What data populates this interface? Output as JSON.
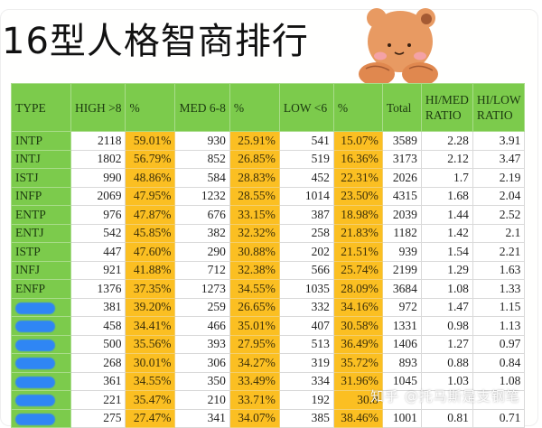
{
  "title": "16型人格智商排行",
  "sticker": "bear-sticker",
  "colors": {
    "header_green": "#7ccb4c",
    "percent_orange": "#fbbf22",
    "redaction_blue": "#2f86f4"
  },
  "table": {
    "headers": [
      "TYPE",
      "HIGH >8",
      "%",
      "MED 6-8",
      "%",
      "LOW <6",
      "%",
      "Total",
      "HI/MED RATIO",
      "HI/LOW RATIO"
    ],
    "rows": [
      {
        "type": "INTP",
        "high": "2118",
        "high_pct": "59.01%",
        "med": "930",
        "med_pct": "25.91%",
        "low": "541",
        "low_pct": "15.07%",
        "total": "3589",
        "hi_med": "2.28",
        "hi_low": "3.91"
      },
      {
        "type": "INTJ",
        "high": "1802",
        "high_pct": "56.79%",
        "med": "852",
        "med_pct": "26.85%",
        "low": "519",
        "low_pct": "16.36%",
        "total": "3173",
        "hi_med": "2.12",
        "hi_low": "3.47"
      },
      {
        "type": "ISTJ",
        "high": "990",
        "high_pct": "48.86%",
        "med": "584",
        "med_pct": "28.83%",
        "low": "452",
        "low_pct": "22.31%",
        "total": "2026",
        "hi_med": "1.7",
        "hi_low": "2.19"
      },
      {
        "type": "INFP",
        "high": "2069",
        "high_pct": "47.95%",
        "med": "1232",
        "med_pct": "28.55%",
        "low": "1014",
        "low_pct": "23.50%",
        "total": "4315",
        "hi_med": "1.68",
        "hi_low": "2.04"
      },
      {
        "type": "ENTP",
        "high": "976",
        "high_pct": "47.87%",
        "med": "676",
        "med_pct": "33.15%",
        "low": "387",
        "low_pct": "18.98%",
        "total": "2039",
        "hi_med": "1.44",
        "hi_low": "2.52"
      },
      {
        "type": "ENTJ",
        "high": "542",
        "high_pct": "45.85%",
        "med": "382",
        "med_pct": "32.32%",
        "low": "258",
        "low_pct": "21.83%",
        "total": "1182",
        "hi_med": "1.42",
        "hi_low": "2.1"
      },
      {
        "type": "ISTP",
        "high": "447",
        "high_pct": "47.60%",
        "med": "290",
        "med_pct": "30.88%",
        "low": "202",
        "low_pct": "21.51%",
        "total": "939",
        "hi_med": "1.54",
        "hi_low": "2.21"
      },
      {
        "type": "INFJ",
        "high": "921",
        "high_pct": "41.88%",
        "med": "712",
        "med_pct": "32.38%",
        "low": "566",
        "low_pct": "25.74%",
        "total": "2199",
        "hi_med": "1.29",
        "hi_low": "1.63"
      },
      {
        "type": "ENFP",
        "high": "1376",
        "high_pct": "37.35%",
        "med": "1273",
        "med_pct": "34.55%",
        "low": "1035",
        "low_pct": "28.09%",
        "total": "3684",
        "hi_med": "1.08",
        "hi_low": "1.33"
      },
      {
        "type": "",
        "high": "381",
        "high_pct": "39.20%",
        "med": "259",
        "med_pct": "26.65%",
        "low": "332",
        "low_pct": "34.16%",
        "total": "972",
        "hi_med": "1.47",
        "hi_low": "1.15"
      },
      {
        "type": "",
        "high": "458",
        "high_pct": "34.41%",
        "med": "466",
        "med_pct": "35.01%",
        "low": "407",
        "low_pct": "30.58%",
        "total": "1331",
        "hi_med": "0.98",
        "hi_low": "1.13"
      },
      {
        "type": "",
        "high": "500",
        "high_pct": "35.56%",
        "med": "393",
        "med_pct": "27.95%",
        "low": "513",
        "low_pct": "36.49%",
        "total": "1406",
        "hi_med": "1.27",
        "hi_low": "0.97"
      },
      {
        "type": "",
        "high": "268",
        "high_pct": "30.01%",
        "med": "306",
        "med_pct": "34.27%",
        "low": "319",
        "low_pct": "35.72%",
        "total": "893",
        "hi_med": "0.88",
        "hi_low": "0.84"
      },
      {
        "type": "",
        "high": "361",
        "high_pct": "34.55%",
        "med": "350",
        "med_pct": "33.49%",
        "low": "334",
        "low_pct": "31.96%",
        "total": "1045",
        "hi_med": "1.03",
        "hi_low": "1.08"
      },
      {
        "type": "",
        "high": "221",
        "high_pct": "35.47%",
        "med": "210",
        "med_pct": "33.71%",
        "low": "192",
        "low_pct": "30.8",
        "total": "",
        "hi_med": "",
        "hi_low": ""
      },
      {
        "type": "",
        "high": "275",
        "high_pct": "27.47%",
        "med": "341",
        "med_pct": "34.07%",
        "low": "385",
        "low_pct": "38.46%",
        "total": "1001",
        "hi_med": "0.81",
        "hi_low": "0.71"
      }
    ]
  },
  "watermark": "知乎 @托马斯是支钢笔"
}
